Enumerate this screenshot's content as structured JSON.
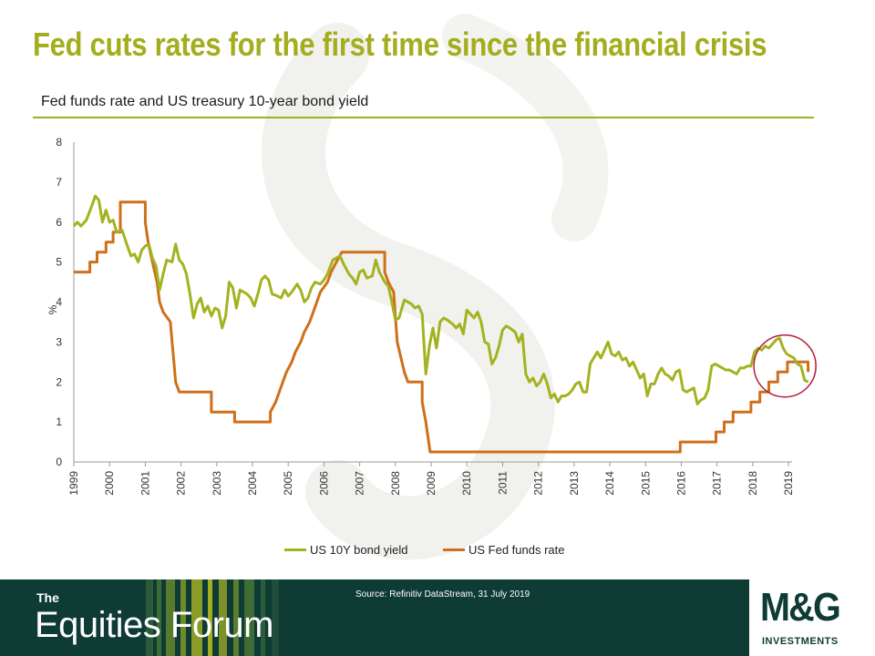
{
  "colors": {
    "title": "#a3ad1e",
    "bond": "#a3b31f",
    "fed": "#d06f1a",
    "circle": "#b51e3c",
    "footer_bg": "#0f3b35"
  },
  "slide": {
    "title": "Fed cuts rates for the first time since the financial crisis",
    "subtitle": "Fed funds rate and US treasury 10-year bond yield"
  },
  "legend": {
    "bond": "US 10Y bond yield",
    "fed": "US Fed funds rate"
  },
  "footer": {
    "brand_small": "The",
    "brand_big": "Equities Forum",
    "source": "Source: Refinitiv DataStream, 31 July 2019",
    "logo": "M&G",
    "logo_sub": "INVESTMENTS"
  },
  "chart_data": {
    "type": "line",
    "title": "Fed funds rate and US treasury 10-year bond yield",
    "xlabel": "",
    "ylabel": "%",
    "xlim": [
      1999,
      2019.1
    ],
    "ylim": [
      0,
      8
    ],
    "yticks": [
      0,
      1,
      2,
      3,
      4,
      5,
      6,
      7,
      8
    ],
    "xticks": [
      "1999",
      "2000",
      "2001",
      "2002",
      "2003",
      "2004",
      "2005",
      "2006",
      "2007",
      "2008",
      "2009",
      "2010",
      "2011",
      "2012",
      "2013",
      "2014",
      "2015",
      "2016",
      "2017",
      "2018",
      "2019"
    ],
    "grid": false,
    "legend_position": "bottom",
    "series": [
      {
        "name": "US 10Y bond yield",
        "points": [
          [
            1999.0,
            5.9
          ],
          [
            1999.1,
            6.0
          ],
          [
            1999.2,
            5.9
          ],
          [
            1999.35,
            6.05
          ],
          [
            1999.5,
            6.4
          ],
          [
            1999.6,
            6.65
          ],
          [
            1999.7,
            6.55
          ],
          [
            1999.8,
            6.0
          ],
          [
            1999.9,
            6.3
          ],
          [
            2000.0,
            6.0
          ],
          [
            2000.1,
            6.05
          ],
          [
            2000.2,
            5.75
          ],
          [
            2000.35,
            5.8
          ],
          [
            2000.5,
            5.4
          ],
          [
            2000.6,
            5.15
          ],
          [
            2000.7,
            5.2
          ],
          [
            2000.8,
            5.0
          ],
          [
            2000.9,
            5.3
          ],
          [
            2001.0,
            5.4
          ],
          [
            2001.1,
            5.45
          ],
          [
            2001.2,
            5.1
          ],
          [
            2001.3,
            4.9
          ],
          [
            2001.4,
            4.3
          ],
          [
            2001.5,
            4.7
          ],
          [
            2001.6,
            5.05
          ],
          [
            2001.75,
            5.0
          ],
          [
            2001.85,
            5.45
          ],
          [
            2001.95,
            5.05
          ],
          [
            2002.05,
            4.95
          ],
          [
            2002.15,
            4.7
          ],
          [
            2002.25,
            4.2
          ],
          [
            2002.35,
            3.6
          ],
          [
            2002.45,
            3.95
          ],
          [
            2002.55,
            4.1
          ],
          [
            2002.65,
            3.75
          ],
          [
            2002.75,
            3.9
          ],
          [
            2002.85,
            3.65
          ],
          [
            2002.95,
            3.85
          ],
          [
            2003.05,
            3.8
          ],
          [
            2003.15,
            3.35
          ],
          [
            2003.25,
            3.65
          ],
          [
            2003.35,
            4.5
          ],
          [
            2003.45,
            4.35
          ],
          [
            2003.55,
            3.85
          ],
          [
            2003.65,
            4.3
          ],
          [
            2003.75,
            4.25
          ],
          [
            2003.85,
            4.2
          ],
          [
            2003.95,
            4.1
          ],
          [
            2004.05,
            3.9
          ],
          [
            2004.15,
            4.2
          ],
          [
            2004.25,
            4.55
          ],
          [
            2004.35,
            4.65
          ],
          [
            2004.45,
            4.55
          ],
          [
            2004.55,
            4.2
          ],
          [
            2004.7,
            4.15
          ],
          [
            2004.8,
            4.1
          ],
          [
            2004.9,
            4.3
          ],
          [
            2005.0,
            4.15
          ],
          [
            2005.1,
            4.25
          ],
          [
            2005.25,
            4.45
          ],
          [
            2005.35,
            4.3
          ],
          [
            2005.45,
            4.0
          ],
          [
            2005.55,
            4.1
          ],
          [
            2005.65,
            4.35
          ],
          [
            2005.75,
            4.5
          ],
          [
            2005.9,
            4.45
          ],
          [
            2006.0,
            4.55
          ],
          [
            2006.1,
            4.7
          ],
          [
            2006.25,
            5.05
          ],
          [
            2006.35,
            5.1
          ],
          [
            2006.45,
            5.15
          ],
          [
            2006.55,
            4.95
          ],
          [
            2006.7,
            4.7
          ],
          [
            2006.8,
            4.6
          ],
          [
            2006.9,
            4.45
          ],
          [
            2007.0,
            4.75
          ],
          [
            2007.1,
            4.8
          ],
          [
            2007.2,
            4.6
          ],
          [
            2007.35,
            4.65
          ],
          [
            2007.45,
            5.05
          ],
          [
            2007.55,
            4.75
          ],
          [
            2007.7,
            4.5
          ],
          [
            2007.8,
            4.4
          ],
          [
            2007.9,
            4.0
          ],
          [
            2008.0,
            3.55
          ],
          [
            2008.1,
            3.6
          ],
          [
            2008.25,
            4.05
          ],
          [
            2008.35,
            4.0
          ],
          [
            2008.45,
            3.95
          ],
          [
            2008.55,
            3.85
          ],
          [
            2008.65,
            3.9
          ],
          [
            2008.75,
            3.7
          ],
          [
            2008.85,
            2.2
          ],
          [
            2008.95,
            2.9
          ],
          [
            2009.05,
            3.35
          ],
          [
            2009.15,
            2.85
          ],
          [
            2009.25,
            3.5
          ],
          [
            2009.35,
            3.6
          ],
          [
            2009.45,
            3.55
          ],
          [
            2009.6,
            3.45
          ],
          [
            2009.7,
            3.35
          ],
          [
            2009.8,
            3.45
          ],
          [
            2009.9,
            3.2
          ],
          [
            2010.0,
            3.8
          ],
          [
            2010.1,
            3.7
          ],
          [
            2010.2,
            3.6
          ],
          [
            2010.3,
            3.75
          ],
          [
            2010.4,
            3.5
          ],
          [
            2010.5,
            3.0
          ],
          [
            2010.6,
            2.95
          ],
          [
            2010.7,
            2.45
          ],
          [
            2010.8,
            2.6
          ],
          [
            2010.9,
            2.9
          ],
          [
            2011.0,
            3.3
          ],
          [
            2011.1,
            3.4
          ],
          [
            2011.2,
            3.35
          ],
          [
            2011.35,
            3.25
          ],
          [
            2011.45,
            3.0
          ],
          [
            2011.55,
            3.2
          ],
          [
            2011.65,
            2.2
          ],
          [
            2011.75,
            2.0
          ],
          [
            2011.85,
            2.1
          ],
          [
            2011.95,
            1.9
          ],
          [
            2012.05,
            2.0
          ],
          [
            2012.15,
            2.2
          ],
          [
            2012.25,
            1.95
          ],
          [
            2012.35,
            1.6
          ],
          [
            2012.45,
            1.7
          ],
          [
            2012.55,
            1.5
          ],
          [
            2012.65,
            1.65
          ],
          [
            2012.75,
            1.65
          ],
          [
            2012.85,
            1.7
          ],
          [
            2012.95,
            1.8
          ],
          [
            2013.05,
            1.95
          ],
          [
            2013.15,
            2.0
          ],
          [
            2013.25,
            1.75
          ],
          [
            2013.35,
            1.75
          ],
          [
            2013.45,
            2.45
          ],
          [
            2013.55,
            2.6
          ],
          [
            2013.65,
            2.75
          ],
          [
            2013.75,
            2.6
          ],
          [
            2013.85,
            2.8
          ],
          [
            2013.95,
            3.0
          ],
          [
            2014.05,
            2.7
          ],
          [
            2014.15,
            2.65
          ],
          [
            2014.25,
            2.75
          ],
          [
            2014.35,
            2.55
          ],
          [
            2014.45,
            2.6
          ],
          [
            2014.55,
            2.4
          ],
          [
            2014.65,
            2.5
          ],
          [
            2014.75,
            2.3
          ],
          [
            2014.85,
            2.1
          ],
          [
            2014.95,
            2.2
          ],
          [
            2015.05,
            1.65
          ],
          [
            2015.15,
            1.95
          ],
          [
            2015.25,
            1.95
          ],
          [
            2015.35,
            2.2
          ],
          [
            2015.45,
            2.35
          ],
          [
            2015.55,
            2.2
          ],
          [
            2015.65,
            2.15
          ],
          [
            2015.75,
            2.05
          ],
          [
            2015.85,
            2.25
          ],
          [
            2015.95,
            2.3
          ],
          [
            2016.05,
            1.8
          ],
          [
            2016.15,
            1.75
          ],
          [
            2016.25,
            1.8
          ],
          [
            2016.35,
            1.85
          ],
          [
            2016.45,
            1.45
          ],
          [
            2016.55,
            1.55
          ],
          [
            2016.65,
            1.6
          ],
          [
            2016.75,
            1.8
          ],
          [
            2016.85,
            2.4
          ],
          [
            2016.95,
            2.45
          ],
          [
            2017.05,
            2.4
          ],
          [
            2017.15,
            2.35
          ],
          [
            2017.25,
            2.3
          ],
          [
            2017.35,
            2.3
          ],
          [
            2017.45,
            2.25
          ],
          [
            2017.55,
            2.2
          ],
          [
            2017.65,
            2.35
          ],
          [
            2017.75,
            2.35
          ],
          [
            2017.85,
            2.4
          ],
          [
            2017.95,
            2.4
          ],
          [
            2018.05,
            2.75
          ],
          [
            2018.15,
            2.85
          ],
          [
            2018.25,
            2.8
          ],
          [
            2018.35,
            2.9
          ],
          [
            2018.45,
            2.85
          ],
          [
            2018.55,
            2.95
          ],
          [
            2018.65,
            3.05
          ],
          [
            2018.75,
            3.1
          ],
          [
            2018.85,
            2.85
          ],
          [
            2018.95,
            2.7
          ],
          [
            2019.05,
            2.65
          ],
          [
            2019.15,
            2.6
          ],
          [
            2019.25,
            2.45
          ],
          [
            2019.35,
            2.4
          ],
          [
            2019.45,
            2.05
          ],
          [
            2019.55,
            2.0
          ]
        ]
      },
      {
        "name": "US Fed funds rate",
        "points": [
          [
            1999.0,
            4.75
          ],
          [
            1999.45,
            4.75
          ],
          [
            1999.45,
            5.0
          ],
          [
            1999.65,
            5.0
          ],
          [
            1999.65,
            5.25
          ],
          [
            1999.9,
            5.25
          ],
          [
            1999.9,
            5.5
          ],
          [
            2000.1,
            5.5
          ],
          [
            2000.1,
            5.75
          ],
          [
            2000.3,
            5.75
          ],
          [
            2000.3,
            6.5
          ],
          [
            2001.0,
            6.5
          ],
          [
            2001.0,
            6.0
          ],
          [
            2001.08,
            5.5
          ],
          [
            2001.2,
            5.0
          ],
          [
            2001.33,
            4.5
          ],
          [
            2001.4,
            4.0
          ],
          [
            2001.5,
            3.75
          ],
          [
            2001.7,
            3.5
          ],
          [
            2001.75,
            3.0
          ],
          [
            2001.8,
            2.5
          ],
          [
            2001.85,
            2.0
          ],
          [
            2001.95,
            1.75
          ],
          [
            2002.85,
            1.75
          ],
          [
            2002.85,
            1.25
          ],
          [
            2003.5,
            1.25
          ],
          [
            2003.5,
            1.0
          ],
          [
            2004.5,
            1.0
          ],
          [
            2004.5,
            1.25
          ],
          [
            2004.65,
            1.5
          ],
          [
            2004.75,
            1.75
          ],
          [
            2004.85,
            2.0
          ],
          [
            2004.95,
            2.25
          ],
          [
            2005.1,
            2.5
          ],
          [
            2005.2,
            2.75
          ],
          [
            2005.35,
            3.0
          ],
          [
            2005.45,
            3.25
          ],
          [
            2005.6,
            3.5
          ],
          [
            2005.7,
            3.75
          ],
          [
            2005.8,
            4.0
          ],
          [
            2005.9,
            4.25
          ],
          [
            2006.1,
            4.5
          ],
          [
            2006.2,
            4.75
          ],
          [
            2006.35,
            5.0
          ],
          [
            2006.5,
            5.25
          ],
          [
            2007.7,
            5.25
          ],
          [
            2007.7,
            4.75
          ],
          [
            2007.8,
            4.5
          ],
          [
            2007.95,
            4.25
          ],
          [
            2008.05,
            3.0
          ],
          [
            2008.25,
            2.25
          ],
          [
            2008.35,
            2.0
          ],
          [
            2008.75,
            2.0
          ],
          [
            2008.75,
            1.5
          ],
          [
            2008.85,
            1.0
          ],
          [
            2008.97,
            0.25
          ],
          [
            2015.97,
            0.25
          ],
          [
            2015.97,
            0.5
          ],
          [
            2016.97,
            0.5
          ],
          [
            2016.97,
            0.75
          ],
          [
            2017.2,
            0.75
          ],
          [
            2017.2,
            1.0
          ],
          [
            2017.45,
            1.0
          ],
          [
            2017.45,
            1.25
          ],
          [
            2017.95,
            1.25
          ],
          [
            2017.95,
            1.5
          ],
          [
            2018.2,
            1.5
          ],
          [
            2018.2,
            1.75
          ],
          [
            2018.45,
            1.75
          ],
          [
            2018.45,
            2.0
          ],
          [
            2018.7,
            2.0
          ],
          [
            2018.7,
            2.25
          ],
          [
            2018.97,
            2.25
          ],
          [
            2018.97,
            2.5
          ],
          [
            2019.55,
            2.5
          ],
          [
            2019.55,
            2.25
          ]
        ]
      }
    ]
  }
}
